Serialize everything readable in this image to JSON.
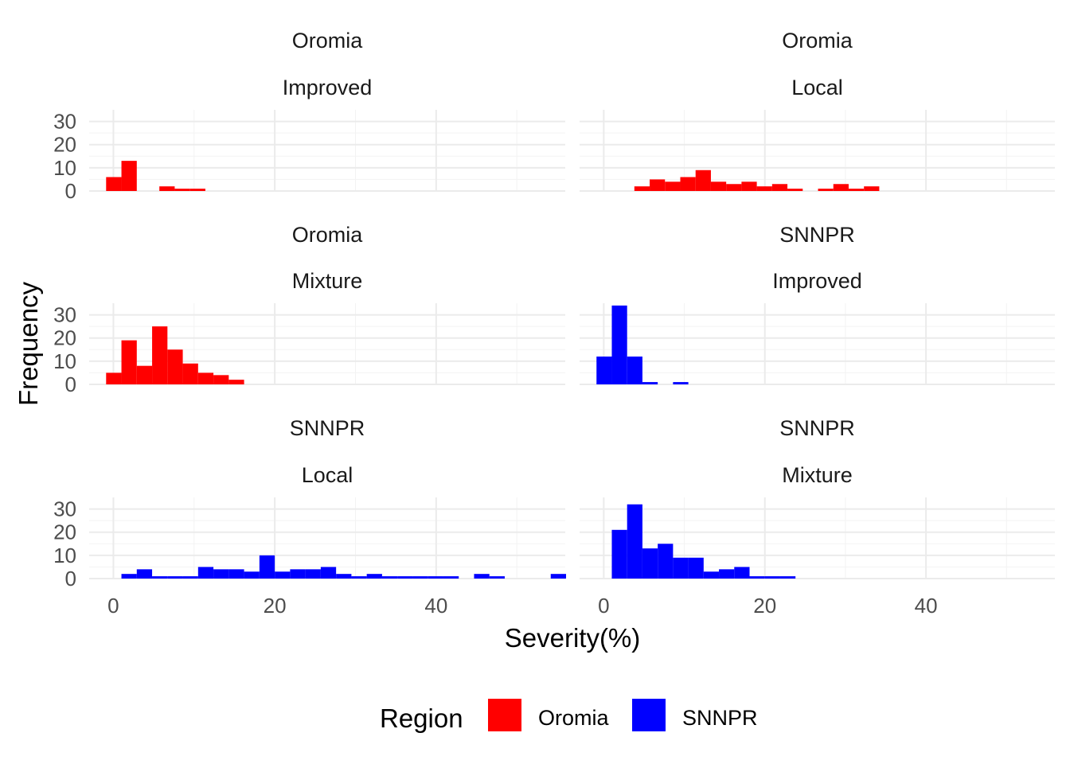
{
  "chart_data": {
    "type": "bar",
    "subtype": "faceted-histogram",
    "xlabel": "Severity(%)",
    "ylabel": "Frequency",
    "xlim": [
      -3,
      56
    ],
    "ylim": [
      0,
      35
    ],
    "x_ticks": [
      0,
      20,
      40
    ],
    "y_ticks": [
      0,
      10,
      20,
      30
    ],
    "bin_width": 1.9,
    "grid": true,
    "legend": {
      "title": "Region",
      "position": "bottom",
      "items": [
        {
          "label": "Oromia",
          "color": "#ff0000"
        },
        {
          "label": "SNNPR",
          "color": "#0000ff"
        }
      ]
    },
    "facets": [
      {
        "region": "Oromia",
        "variety": "Improved",
        "color": "#ff0000",
        "bins": [
          {
            "x": -0.9,
            "count": 6
          },
          {
            "x": 1.0,
            "count": 13
          },
          {
            "x": 5.7,
            "count": 2
          },
          {
            "x": 7.6,
            "count": 1
          },
          {
            "x": 9.5,
            "count": 1
          }
        ]
      },
      {
        "region": "Oromia",
        "variety": "Local",
        "color": "#ff0000",
        "bins": [
          {
            "x": 3.8,
            "count": 2
          },
          {
            "x": 5.7,
            "count": 5
          },
          {
            "x": 7.6,
            "count": 4
          },
          {
            "x": 9.5,
            "count": 6
          },
          {
            "x": 11.4,
            "count": 9
          },
          {
            "x": 13.3,
            "count": 4
          },
          {
            "x": 15.2,
            "count": 3
          },
          {
            "x": 17.1,
            "count": 4
          },
          {
            "x": 19.0,
            "count": 2
          },
          {
            "x": 20.9,
            "count": 3
          },
          {
            "x": 22.8,
            "count": 1
          },
          {
            "x": 26.6,
            "count": 1
          },
          {
            "x": 28.5,
            "count": 3
          },
          {
            "x": 30.4,
            "count": 1
          },
          {
            "x": 32.3,
            "count": 2
          }
        ]
      },
      {
        "region": "Oromia",
        "variety": "Mixture",
        "color": "#ff0000",
        "bins": [
          {
            "x": -0.9,
            "count": 5
          },
          {
            "x": 1.0,
            "count": 19
          },
          {
            "x": 2.9,
            "count": 8
          },
          {
            "x": 4.8,
            "count": 25
          },
          {
            "x": 6.7,
            "count": 15
          },
          {
            "x": 8.6,
            "count": 9
          },
          {
            "x": 10.5,
            "count": 5
          },
          {
            "x": 12.4,
            "count": 4
          },
          {
            "x": 14.3,
            "count": 2
          }
        ]
      },
      {
        "region": "SNNPR",
        "variety": "Improved",
        "color": "#0000ff",
        "bins": [
          {
            "x": -0.9,
            "count": 12
          },
          {
            "x": 1.0,
            "count": 34
          },
          {
            "x": 2.9,
            "count": 12
          },
          {
            "x": 4.8,
            "count": 1
          },
          {
            "x": 8.6,
            "count": 1
          }
        ]
      },
      {
        "region": "SNNPR",
        "variety": "Local",
        "color": "#0000ff",
        "bins": [
          {
            "x": 1.0,
            "count": 2
          },
          {
            "x": 2.9,
            "count": 4
          },
          {
            "x": 4.8,
            "count": 1
          },
          {
            "x": 6.7,
            "count": 1
          },
          {
            "x": 8.6,
            "count": 1
          },
          {
            "x": 10.5,
            "count": 5
          },
          {
            "x": 12.4,
            "count": 4
          },
          {
            "x": 14.3,
            "count": 4
          },
          {
            "x": 16.2,
            "count": 3
          },
          {
            "x": 18.1,
            "count": 10
          },
          {
            "x": 20.0,
            "count": 3
          },
          {
            "x": 21.9,
            "count": 4
          },
          {
            "x": 23.8,
            "count": 4
          },
          {
            "x": 25.7,
            "count": 5
          },
          {
            "x": 27.6,
            "count": 2
          },
          {
            "x": 29.5,
            "count": 1
          },
          {
            "x": 31.4,
            "count": 2
          },
          {
            "x": 33.3,
            "count": 1
          },
          {
            "x": 35.2,
            "count": 1
          },
          {
            "x": 37.1,
            "count": 1
          },
          {
            "x": 39.0,
            "count": 1
          },
          {
            "x": 40.9,
            "count": 1
          },
          {
            "x": 44.7,
            "count": 2
          },
          {
            "x": 46.6,
            "count": 1
          },
          {
            "x": 54.2,
            "count": 2
          }
        ]
      },
      {
        "region": "SNNPR",
        "variety": "Mixture",
        "color": "#0000ff",
        "bins": [
          {
            "x": 1.0,
            "count": 21
          },
          {
            "x": 2.9,
            "count": 32
          },
          {
            "x": 4.8,
            "count": 13
          },
          {
            "x": 6.7,
            "count": 15
          },
          {
            "x": 8.6,
            "count": 9
          },
          {
            "x": 10.5,
            "count": 9
          },
          {
            "x": 12.4,
            "count": 3
          },
          {
            "x": 14.3,
            "count": 4
          },
          {
            "x": 16.2,
            "count": 5
          },
          {
            "x": 18.1,
            "count": 1
          },
          {
            "x": 20.0,
            "count": 1
          },
          {
            "x": 21.9,
            "count": 1
          }
        ]
      }
    ]
  }
}
